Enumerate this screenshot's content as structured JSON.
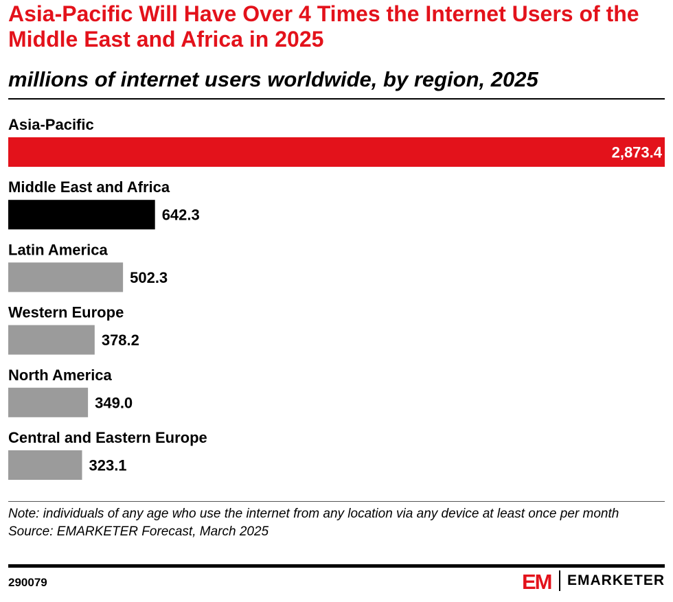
{
  "header": {
    "title": "Asia-Pacific Will Have Over 4 Times the Internet Users of the Middle East and Africa in 2025",
    "subtitle": "millions of internet users worldwide, by region, 2025"
  },
  "chart_data": {
    "type": "bar",
    "orientation": "horizontal",
    "title": "Asia-Pacific Will Have Over 4 Times the Internet Users of the Middle East and Africa in 2025",
    "subtitle": "millions of internet users worldwide, by region, 2025",
    "categories": [
      "Asia-Pacific",
      "Middle East and Africa",
      "Latin America",
      "Western Europe",
      "North America",
      "Central and Eastern Europe"
    ],
    "values": [
      2873.4,
      642.3,
      502.3,
      378.2,
      349.0,
      323.1
    ],
    "value_labels": [
      "2,873.4",
      "642.3",
      "502.3",
      "378.2",
      "349.0",
      "323.1"
    ],
    "colors": [
      "#e3121b",
      "#000000",
      "#9b9b9b",
      "#9b9b9b",
      "#9b9b9b",
      "#9b9b9b"
    ],
    "xlim": [
      0,
      2873.4
    ],
    "grid": false,
    "legend": "none"
  },
  "footer": {
    "note": "Note: individuals of any age who use the internet from any location via any device at least once per month",
    "source": "Source: EMARKETER Forecast, March 2025",
    "chart_id": "290079",
    "brand_mark": "EM",
    "brand_name": "EMARKETER",
    "brand_color": "#e3121b"
  }
}
